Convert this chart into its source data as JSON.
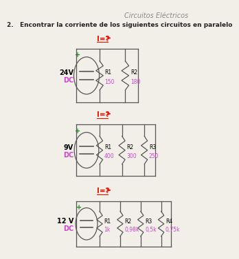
{
  "title": "Circuitos Eléctricos",
  "subtitle": "2.   Encontrar la corriente de los siguientes circuitos en paralelo",
  "background_color": "#f2efe9",
  "title_color": "#888888",
  "subtitle_color": "#222222",
  "circuits": [
    {
      "voltage": "24V",
      "voltage_color": "#000000",
      "dc_color": "#cc44cc",
      "resistors": [
        {
          "name": "R1",
          "value": "150"
        },
        {
          "name": "R2",
          "value": "180"
        }
      ],
      "current_label": "I=?",
      "current_color": "#ee1100"
    },
    {
      "voltage": "9V",
      "voltage_color": "#000000",
      "dc_color": "#cc44cc",
      "resistors": [
        {
          "name": "R1",
          "value": "400"
        },
        {
          "name": "R2",
          "value": "300"
        },
        {
          "name": "R3",
          "value": "250"
        }
      ],
      "current_label": "I=?",
      "current_color": "#ee1100"
    },
    {
      "voltage": "12 V",
      "voltage_color": "#000000",
      "dc_color": "#cc44cc",
      "resistors": [
        {
          "name": "R1",
          "value": "1k"
        },
        {
          "name": "R2",
          "value": "0,98k"
        },
        {
          "name": "R3",
          "value": "0,5k"
        },
        {
          "name": "R4",
          "value": "0,75k"
        }
      ],
      "current_label": "I=?",
      "current_color": "#ee1100"
    }
  ],
  "res_name_color": "#000000",
  "res_value_color": "#cc44cc",
  "wire_color": "#555555",
  "plus_color": "#228822"
}
